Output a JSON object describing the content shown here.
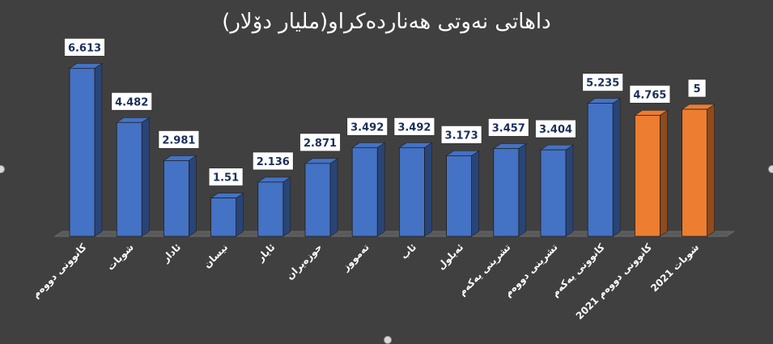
{
  "chart_data": {
    "type": "bar",
    "title": "داهاتی نەوتی هەناردەکراو(ملیار دۆلار)",
    "categories": [
      "کانوونی دووەم",
      "شوبات",
      "ئادار",
      "نیسان",
      "ئایار",
      "حوزەیران",
      "تەمووز",
      "ئاب",
      "ئەیلول",
      "تشرینی یەکەم",
      "تشرینی دووەم",
      "کانوونی یەکەم",
      "کانوونی دووەم 2021",
      "شوبات 2021"
    ],
    "values": [
      6.613,
      4.482,
      2.981,
      1.51,
      2.136,
      2.871,
      3.492,
      3.492,
      3.173,
      3.457,
      3.404,
      5.235,
      4.765,
      5
    ],
    "value_labels": [
      "6.613",
      "4.482",
      "2.981",
      "1.51",
      "2.136",
      "2.871",
      "3.492",
      "3.492",
      "3.173",
      "3.457",
      "3.404",
      "5.235",
      "4.765",
      "5"
    ],
    "bar_colors": [
      "#4472c4",
      "#4472c4",
      "#4472c4",
      "#4472c4",
      "#4472c4",
      "#4472c4",
      "#4472c4",
      "#4472c4",
      "#4472c4",
      "#4472c4",
      "#4472c4",
      "#4472c4",
      "#ed7d31",
      "#ed7d31"
    ],
    "ylim": [
      0,
      7
    ],
    "grid": false,
    "legend": "none",
    "background": "#404040"
  }
}
